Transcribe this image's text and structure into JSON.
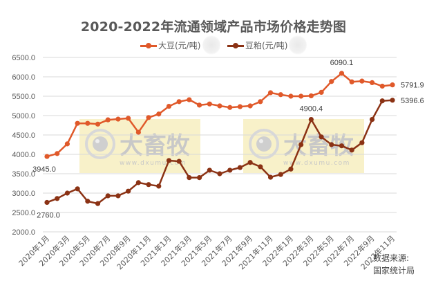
{
  "title": "2020-2022年流通领域产品市场价格走势图",
  "legend": [
    {
      "label": "大豆(元/吨)",
      "color": "#E0592A",
      "icon": "line-marker-icon"
    },
    {
      "label": "豆粕(元/吨)",
      "color": "#8B3214",
      "icon": "line-marker-icon"
    }
  ],
  "source": {
    "line1": "数据来源:",
    "line2": "国家统计局"
  },
  "watermark": {
    "text": "大畜牧",
    "url": "www.dxumu.com"
  },
  "y_ticks": [
    "6500.0",
    "6000.0",
    "5500.0",
    "5000.0",
    "4500.0",
    "4000.0",
    "3500.0",
    "3000.0",
    "2500.0",
    "2000.0"
  ],
  "x_tick_labels": [
    "2020年1月",
    "2020年3月",
    "2020年5月",
    "2020年7月",
    "2020年9月",
    "2020年11月",
    "2021年1月",
    "2021年3月",
    "2021年5月",
    "2021年7月",
    "2021年9月",
    "2021年11月",
    "2022年1月",
    "2022年3月",
    "2022年5月",
    "2022年7月",
    "2022年9月",
    "2022年11月"
  ],
  "annotations": [
    {
      "series": 0,
      "index": 0,
      "text": "3945.0"
    },
    {
      "series": 1,
      "index": 0,
      "text": "2760.0"
    },
    {
      "series": 0,
      "index": 29,
      "text": "6090.1"
    },
    {
      "series": 1,
      "index": 26,
      "text": "4900.4"
    },
    {
      "series": 0,
      "index": 34,
      "text": "5791.9"
    },
    {
      "series": 1,
      "index": 34,
      "text": "5396.6"
    }
  ],
  "chart_data": {
    "type": "line",
    "title": "2020-2022年流通领域产品市场价格走势图",
    "xlabel": "",
    "ylabel": "",
    "ylim": [
      2000,
      6500
    ],
    "y_tick_step": 500,
    "grid": true,
    "legend_position": "top",
    "x": [
      "2020年1月",
      "2020年2月",
      "2020年3月",
      "2020年4月",
      "2020年5月",
      "2020年6月",
      "2020年7月",
      "2020年8月",
      "2020年9月",
      "2020年10月",
      "2020年11月",
      "2020年12月",
      "2021年1月",
      "2021年2月",
      "2021年3月",
      "2021年4月",
      "2021年5月",
      "2021年6月",
      "2021年7月",
      "2021年8月",
      "2021年9月",
      "2021年10月",
      "2021年11月",
      "2021年12月",
      "2022年1月",
      "2022年2月",
      "2022年3月",
      "2022年4月",
      "2022年5月",
      "2022年6月",
      "2022年7月",
      "2022年8月",
      "2022年9月",
      "2022年10月",
      "2022年11月"
    ],
    "series": [
      {
        "name": "大豆(元/吨)",
        "color": "#E0592A",
        "values": [
          3945.0,
          4020,
          4270,
          4800,
          4800,
          4780,
          4890,
          4910,
          4930,
          4570,
          4950,
          5040,
          5240,
          5360,
          5410,
          5270,
          5300,
          5250,
          5210,
          5230,
          5250,
          5360,
          5590,
          5540,
          5500,
          5500,
          5510,
          5600,
          5880,
          6090.1,
          5870,
          5890,
          5850,
          5760,
          5791.9
        ]
      },
      {
        "name": "豆粕(元/吨)",
        "color": "#8B3214",
        "values": [
          2760.0,
          2860,
          3000,
          3110,
          2790,
          2730,
          2930,
          2930,
          3050,
          3270,
          3220,
          3180,
          3840,
          3820,
          3400,
          3400,
          3590,
          3500,
          3590,
          3660,
          3790,
          3680,
          3410,
          3480,
          3620,
          4250,
          4900.4,
          4450,
          4250,
          4220,
          4110,
          4300,
          4900,
          5380,
          5396.6
        ]
      }
    ]
  }
}
